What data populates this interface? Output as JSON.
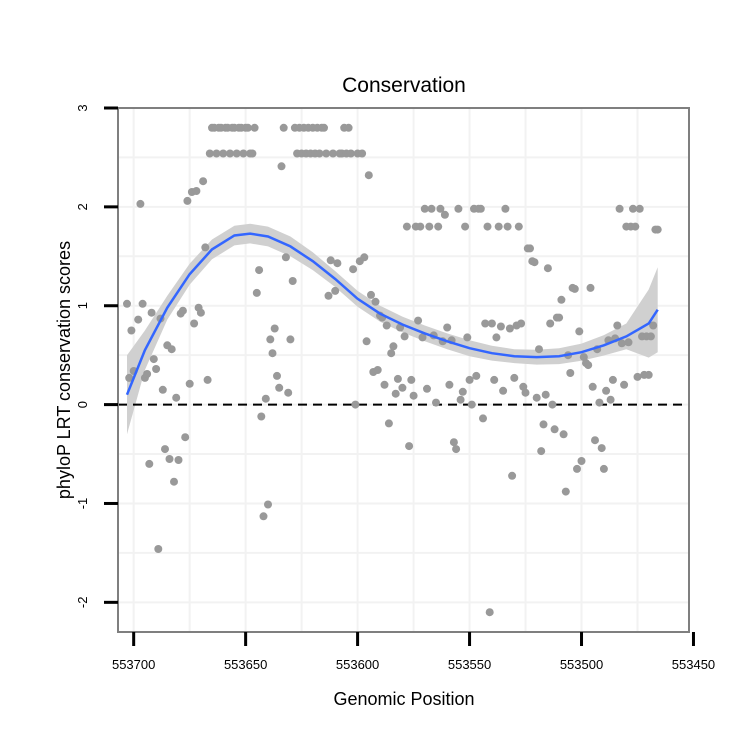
{
  "chart_data": {
    "type": "scatter",
    "title": "Conservation",
    "xlabel": "Genomic Position",
    "ylabel": "phyloP LRT conservation scores",
    "x_reversed": true,
    "xlim": [
      553452,
      553707
    ],
    "ylim": [
      -2.3,
      3
    ],
    "x_ticks": [
      553700,
      553650,
      553600,
      553550,
      553500,
      553450
    ],
    "y_ticks": [
      -2,
      -1,
      0,
      1,
      2,
      3
    ],
    "grid": true,
    "reference_line": {
      "y": 0,
      "style": "dashed",
      "color": "#000000"
    },
    "colors": {
      "points": "#999999",
      "smooth": "#3366ff",
      "ribbon": "#d0d0d0",
      "frame": "#7f7f7f",
      "grid": "#f2f2f2"
    },
    "points": [
      [
        553703,
        1.02
      ],
      [
        553702,
        0.27
      ],
      [
        553701,
        0.75
      ],
      [
        553700,
        0.34
      ],
      [
        553698,
        0.86
      ],
      [
        553697,
        2.03
      ],
      [
        553696,
        1.02
      ],
      [
        553695,
        0.27
      ],
      [
        553694,
        0.31
      ],
      [
        553693,
        -0.6
      ],
      [
        553692,
        0.93
      ],
      [
        553691,
        0.46
      ],
      [
        553690,
        0.36
      ],
      [
        553689,
        -1.46
      ],
      [
        553688,
        0.87
      ],
      [
        553687,
        0.15
      ],
      [
        553686,
        -0.45
      ],
      [
        553685,
        0.6
      ],
      [
        553684,
        -0.55
      ],
      [
        553683,
        0.56
      ],
      [
        553682,
        -0.78
      ],
      [
        553681,
        0.07
      ],
      [
        553680,
        -0.56
      ],
      [
        553679,
        0.92
      ],
      [
        553678,
        0.95
      ],
      [
        553677,
        -0.33
      ],
      [
        553676,
        2.06
      ],
      [
        553675,
        0.21
      ],
      [
        553674,
        2.15
      ],
      [
        553673,
        0.82
      ],
      [
        553672,
        2.16
      ],
      [
        553671,
        0.98
      ],
      [
        553670,
        0.93
      ],
      [
        553669,
        2.26
      ],
      [
        553668,
        1.59
      ],
      [
        553667,
        0.25
      ],
      [
        553666,
        2.54
      ],
      [
        553665,
        2.8
      ],
      [
        553664,
        2.8
      ],
      [
        553663,
        2.54
      ],
      [
        553662,
        2.8
      ],
      [
        553661,
        2.8
      ],
      [
        553660,
        2.54
      ],
      [
        553659,
        2.8
      ],
      [
        553658,
        2.8
      ],
      [
        553657,
        2.54
      ],
      [
        553656,
        2.8
      ],
      [
        553655,
        2.8
      ],
      [
        553654,
        2.54
      ],
      [
        553653,
        2.8
      ],
      [
        553652,
        2.8
      ],
      [
        553651,
        2.54
      ],
      [
        553650,
        2.8
      ],
      [
        553649,
        2.8
      ],
      [
        553648,
        2.54
      ],
      [
        553647,
        2.54
      ],
      [
        553646,
        2.8
      ],
      [
        553645,
        1.13
      ],
      [
        553644,
        1.36
      ],
      [
        553643,
        -0.12
      ],
      [
        553642,
        -1.13
      ],
      [
        553641,
        0.06
      ],
      [
        553640,
        -1.01
      ],
      [
        553639,
        0.66
      ],
      [
        553638,
        0.52
      ],
      [
        553637,
        0.77
      ],
      [
        553636,
        0.29
      ],
      [
        553635,
        0.17
      ],
      [
        553634,
        2.41
      ],
      [
        553633,
        2.8
      ],
      [
        553632,
        1.49
      ],
      [
        553631,
        0.12
      ],
      [
        553630,
        0.66
      ],
      [
        553629,
        1.25
      ],
      [
        553628,
        2.8
      ],
      [
        553627,
        2.54
      ],
      [
        553626,
        2.8
      ],
      [
        553625,
        2.54
      ],
      [
        553624,
        2.8
      ],
      [
        553623,
        2.54
      ],
      [
        553622,
        2.8
      ],
      [
        553621,
        2.54
      ],
      [
        553620,
        2.8
      ],
      [
        553619,
        2.54
      ],
      [
        553618,
        2.8
      ],
      [
        553617,
        2.54
      ],
      [
        553616,
        2.8
      ],
      [
        553615,
        2.8
      ],
      [
        553614,
        2.54
      ],
      [
        553613,
        1.1
      ],
      [
        553612,
        1.46
      ],
      [
        553611,
        2.54
      ],
      [
        553610,
        1.15
      ],
      [
        553609,
        1.43
      ],
      [
        553608,
        2.54
      ],
      [
        553607,
        2.54
      ],
      [
        553606,
        2.8
      ],
      [
        553605,
        2.54
      ],
      [
        553604,
        2.8
      ],
      [
        553603,
        2.54
      ],
      [
        553602,
        1.37
      ],
      [
        553601,
        0.0
      ],
      [
        553600,
        2.54
      ],
      [
        553599,
        1.45
      ],
      [
        553598,
        2.54
      ],
      [
        553597,
        1.49
      ],
      [
        553596,
        0.64
      ],
      [
        553595,
        2.32
      ],
      [
        553594,
        1.11
      ],
      [
        553593,
        0.33
      ],
      [
        553592,
        1.04
      ],
      [
        553591,
        0.35
      ],
      [
        553590,
        0.9
      ],
      [
        553589,
        0.88
      ],
      [
        553588,
        0.2
      ],
      [
        553587,
        0.8
      ],
      [
        553586,
        -0.19
      ],
      [
        553585,
        0.52
      ],
      [
        553584,
        0.59
      ],
      [
        553583,
        0.11
      ],
      [
        553582,
        0.26
      ],
      [
        553581,
        0.78
      ],
      [
        553580,
        0.17
      ],
      [
        553579,
        0.69
      ],
      [
        553578,
        1.8
      ],
      [
        553577,
        -0.42
      ],
      [
        553576,
        0.25
      ],
      [
        553575,
        0.09
      ],
      [
        553574,
        1.8
      ],
      [
        553573,
        0.85
      ],
      [
        553572,
        1.8
      ],
      [
        553571,
        0.68
      ],
      [
        553570,
        1.98
      ],
      [
        553569,
        0.16
      ],
      [
        553568,
        1.8
      ],
      [
        553567,
        1.98
      ],
      [
        553566,
        0.7
      ],
      [
        553565,
        0.02
      ],
      [
        553564,
        1.8
      ],
      [
        553563,
        1.98
      ],
      [
        553562,
        0.64
      ],
      [
        553561,
        1.92
      ],
      [
        553560,
        0.78
      ],
      [
        553559,
        0.2
      ],
      [
        553558,
        0.65
      ],
      [
        553557,
        -0.38
      ],
      [
        553556,
        -0.45
      ],
      [
        553555,
        1.98
      ],
      [
        553554,
        0.05
      ],
      [
        553553,
        0.13
      ],
      [
        553552,
        1.8
      ],
      [
        553551,
        0.68
      ],
      [
        553550,
        0.25
      ],
      [
        553549,
        0.0
      ],
      [
        553548,
        1.98
      ],
      [
        553547,
        0.29
      ],
      [
        553546,
        1.98
      ],
      [
        553545,
        1.98
      ],
      [
        553544,
        -0.14
      ],
      [
        553543,
        0.82
      ],
      [
        553542,
        1.8
      ],
      [
        553541,
        -2.1
      ],
      [
        553540,
        0.82
      ],
      [
        553539,
        0.25
      ],
      [
        553538,
        0.68
      ],
      [
        553537,
        1.8
      ],
      [
        553536,
        0.79
      ],
      [
        553535,
        0.14
      ],
      [
        553534,
        1.98
      ],
      [
        553533,
        1.8
      ],
      [
        553532,
        0.77
      ],
      [
        553531,
        -0.72
      ],
      [
        553530,
        0.27
      ],
      [
        553529,
        0.8
      ],
      [
        553528,
        1.8
      ],
      [
        553527,
        0.82
      ],
      [
        553526,
        0.18
      ],
      [
        553525,
        0.12
      ],
      [
        553524,
        1.58
      ],
      [
        553523,
        1.58
      ],
      [
        553522,
        1.45
      ],
      [
        553521,
        1.44
      ],
      [
        553520,
        0.07
      ],
      [
        553519,
        0.56
      ],
      [
        553518,
        -0.47
      ],
      [
        553517,
        -0.2
      ],
      [
        553516,
        0.1
      ],
      [
        553515,
        1.38
      ],
      [
        553514,
        0.82
      ],
      [
        553513,
        0.0
      ],
      [
        553512,
        -0.25
      ],
      [
        553511,
        0.88
      ],
      [
        553510,
        0.88
      ],
      [
        553509,
        1.06
      ],
      [
        553508,
        -0.3
      ],
      [
        553507,
        -0.88
      ],
      [
        553506,
        0.5
      ],
      [
        553505,
        0.32
      ],
      [
        553504,
        1.18
      ],
      [
        553503,
        1.17
      ],
      [
        553502,
        -0.65
      ],
      [
        553501,
        0.74
      ],
      [
        553500,
        -0.57
      ],
      [
        553499,
        0.48
      ],
      [
        553498,
        0.42
      ],
      [
        553497,
        0.4
      ],
      [
        553496,
        1.18
      ],
      [
        553495,
        0.18
      ],
      [
        553494,
        -0.36
      ],
      [
        553493,
        0.56
      ],
      [
        553492,
        0.02
      ],
      [
        553491,
        -0.44
      ],
      [
        553490,
        -0.65
      ],
      [
        553489,
        0.14
      ],
      [
        553488,
        0.65
      ],
      [
        553487,
        0.05
      ],
      [
        553486,
        0.25
      ],
      [
        553485,
        0.67
      ],
      [
        553484,
        0.8
      ],
      [
        553483,
        1.98
      ],
      [
        553482,
        0.62
      ],
      [
        553481,
        0.2
      ],
      [
        553480,
        1.8
      ],
      [
        553479,
        0.63
      ],
      [
        553478,
        1.8
      ],
      [
        553477,
        1.98
      ],
      [
        553476,
        1.8
      ],
      [
        553475,
        0.28
      ],
      [
        553474,
        1.98
      ],
      [
        553473,
        0.69
      ],
      [
        553472,
        0.3
      ],
      [
        553471,
        0.69
      ],
      [
        553470,
        0.3
      ],
      [
        553469,
        0.69
      ],
      [
        553468,
        0.8
      ],
      [
        553467,
        1.77
      ],
      [
        553466,
        1.77
      ]
    ],
    "smooth": [
      [
        553703,
        0.1
      ],
      [
        553695,
        0.55
      ],
      [
        553685,
        0.98
      ],
      [
        553675,
        1.32
      ],
      [
        553665,
        1.57
      ],
      [
        553655,
        1.71
      ],
      [
        553648,
        1.73
      ],
      [
        553640,
        1.7
      ],
      [
        553630,
        1.6
      ],
      [
        553620,
        1.45
      ],
      [
        553610,
        1.27
      ],
      [
        553600,
        1.07
      ],
      [
        553590,
        0.92
      ],
      [
        553580,
        0.81
      ],
      [
        553570,
        0.72
      ],
      [
        553560,
        0.64
      ],
      [
        553550,
        0.57
      ],
      [
        553540,
        0.52
      ],
      [
        553530,
        0.49
      ],
      [
        553520,
        0.48
      ],
      [
        553510,
        0.49
      ],
      [
        553500,
        0.53
      ],
      [
        553490,
        0.6
      ],
      [
        553480,
        0.69
      ],
      [
        553470,
        0.82
      ],
      [
        553466,
        0.96
      ]
    ],
    "ribbon_halfwidth": [
      [
        553703,
        0.4
      ],
      [
        553695,
        0.2
      ],
      [
        553685,
        0.12
      ],
      [
        553670,
        0.1
      ],
      [
        553650,
        0.1
      ],
      [
        553630,
        0.1
      ],
      [
        553610,
        0.08
      ],
      [
        553590,
        0.08
      ],
      [
        553570,
        0.08
      ],
      [
        553550,
        0.08
      ],
      [
        553530,
        0.07
      ],
      [
        553510,
        0.08
      ],
      [
        553495,
        0.09
      ],
      [
        553480,
        0.13
      ],
      [
        553466,
        0.43
      ]
    ]
  }
}
